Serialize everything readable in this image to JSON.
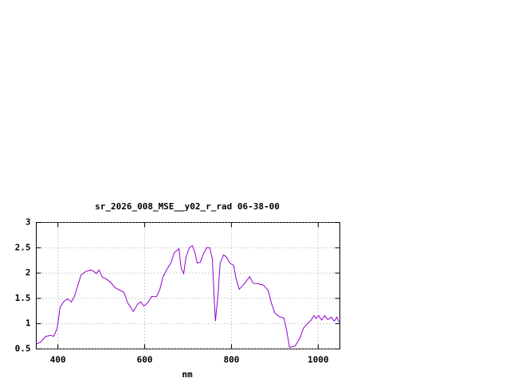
{
  "chart_data": {
    "type": "line",
    "title": "sr_2026_008_MSE__y02_r_rad 06-38-00",
    "x_label": "nm",
    "x": [
      350,
      359,
      372,
      383,
      390,
      398,
      405,
      414,
      422,
      431,
      438,
      446,
      453,
      464,
      475,
      482,
      488,
      495,
      502,
      512,
      521,
      532,
      552,
      561,
      574,
      583,
      591,
      598,
      607,
      616,
      627,
      635,
      642,
      651,
      661,
      668,
      679,
      684,
      690,
      695,
      703,
      710,
      716,
      721,
      728,
      736,
      743,
      750,
      756,
      760,
      763,
      769,
      774,
      782,
      789,
      796,
      805,
      811,
      818,
      828,
      835,
      842,
      850,
      862,
      874,
      885,
      892,
      900,
      910,
      921,
      927,
      934,
      947,
      958,
      966,
      975,
      984,
      990,
      995,
      1001,
      1008,
      1015,
      1022,
      1030,
      1037,
      1043,
      1048
    ],
    "series": [
      {
        "name": "sr_2026_008_MSE__y02_r_rad 06-38-00",
        "color": "#9400d3",
        "values": [
          0.6,
          0.63,
          0.75,
          0.77,
          0.75,
          0.9,
          1.33,
          1.44,
          1.49,
          1.43,
          1.54,
          1.76,
          1.96,
          2.03,
          2.06,
          2.04,
          1.99,
          2.06,
          1.92,
          1.88,
          1.82,
          1.71,
          1.62,
          1.41,
          1.24,
          1.38,
          1.43,
          1.35,
          1.41,
          1.54,
          1.53,
          1.68,
          1.92,
          2.07,
          2.21,
          2.4,
          2.48,
          2.1,
          1.99,
          2.31,
          2.5,
          2.54,
          2.4,
          2.2,
          2.21,
          2.39,
          2.5,
          2.5,
          2.28,
          1.54,
          1.05,
          1.57,
          2.2,
          2.36,
          2.31,
          2.2,
          2.15,
          1.88,
          1.68,
          1.77,
          1.85,
          1.93,
          1.8,
          1.79,
          1.76,
          1.65,
          1.41,
          1.21,
          1.14,
          1.11,
          0.88,
          0.53,
          0.56,
          0.72,
          0.91,
          1.0,
          1.07,
          1.16,
          1.1,
          1.16,
          1.07,
          1.16,
          1.08,
          1.13,
          1.05,
          1.13,
          1.03
        ]
      }
    ],
    "xlim": [
      350,
      1050
    ],
    "xticks": [
      400,
      600,
      800,
      1000
    ],
    "ylim": [
      0.5,
      3
    ],
    "yticks": [
      0.5,
      1,
      1.5,
      2,
      2.5,
      3
    ],
    "grid": true
  }
}
